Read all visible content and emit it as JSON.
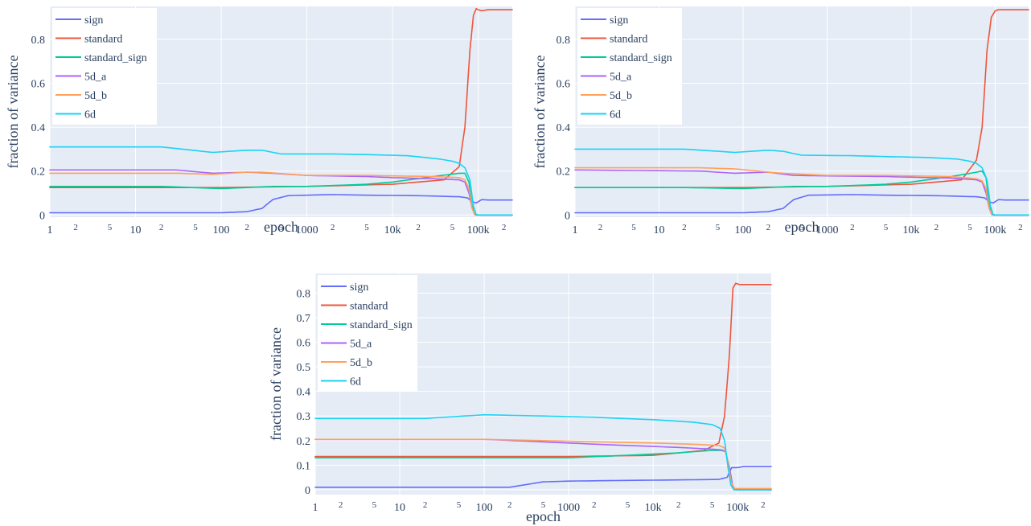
{
  "chart_data": [
    {
      "type": "line",
      "xlabel": "epoch",
      "ylabel": "fraction of variance",
      "x_scale": "log",
      "xlim": [
        1,
        250000
      ],
      "ylim": [
        -0.01,
        0.95
      ],
      "yticks": [
        0,
        0.2,
        0.4,
        0.6,
        0.8
      ],
      "ytick_labels": [
        "0",
        "0.2",
        "0.4",
        "0.6",
        "0.8"
      ],
      "xticks_major": [
        1,
        10,
        100,
        1000,
        10000,
        100000
      ],
      "xtick_labels_major": [
        "1",
        "10",
        "100",
        "1000",
        "10k",
        "100k"
      ],
      "xticks_minor": [
        2,
        5,
        20,
        50,
        200,
        500,
        2000,
        5000,
        20000,
        50000,
        200000
      ],
      "xtick_labels_minor": [
        "2",
        "5",
        "2",
        "5",
        "2",
        "5",
        "2",
        "5",
        "2",
        "5",
        "2"
      ],
      "grid": true,
      "legend_position": "top-left",
      "series": [
        {
          "name": "sign",
          "color": "#636efa",
          "x": [
            1,
            100,
            200,
            300,
            400,
            600,
            2000,
            5000,
            20000,
            60000,
            75000,
            85000,
            95000,
            110000,
            130000,
            250000
          ],
          "y": [
            0.01,
            0.01,
            0.015,
            0.03,
            0.07,
            0.088,
            0.093,
            0.09,
            0.088,
            0.083,
            0.078,
            0.06,
            0.055,
            0.07,
            0.068,
            0.068
          ]
        },
        {
          "name": "standard",
          "color": "#ef553b",
          "x": [
            1,
            100,
            1000,
            10000,
            40000,
            60000,
            70000,
            80000,
            88000,
            95000,
            100000,
            110000,
            130000,
            250000
          ],
          "y": [
            0.125,
            0.125,
            0.13,
            0.14,
            0.16,
            0.22,
            0.4,
            0.75,
            0.91,
            0.94,
            0.935,
            0.93,
            0.935,
            0.935
          ]
        },
        {
          "name": "standard_sign",
          "color": "#00cc96",
          "x": [
            1,
            20,
            100,
            200,
            400,
            1000,
            5000,
            10000,
            30000,
            60000,
            70000,
            78000,
            84000,
            90000,
            100000,
            250000
          ],
          "y": [
            0.13,
            0.13,
            0.12,
            0.125,
            0.13,
            0.13,
            0.14,
            0.15,
            0.175,
            0.19,
            0.19,
            0.15,
            0.05,
            0.005,
            0.0,
            0.0
          ]
        },
        {
          "name": "5d_a",
          "color": "#ab63fa",
          "x": [
            1,
            30,
            80,
            200,
            400,
            1000,
            5000,
            10000,
            30000,
            60000,
            70000,
            78000,
            85000,
            92000,
            100000,
            250000
          ],
          "y": [
            0.205,
            0.205,
            0.19,
            0.195,
            0.19,
            0.18,
            0.175,
            0.17,
            0.165,
            0.16,
            0.15,
            0.1,
            0.03,
            0.0,
            0.0,
            0.0
          ]
        },
        {
          "name": "5d_b",
          "color": "#ffa15a",
          "x": [
            1,
            30,
            80,
            200,
            300,
            1000,
            5000,
            10000,
            30000,
            60000,
            70000,
            78000,
            85000,
            92000,
            100000,
            250000
          ],
          "y": [
            0.19,
            0.19,
            0.185,
            0.195,
            0.195,
            0.18,
            0.18,
            0.178,
            0.175,
            0.17,
            0.16,
            0.12,
            0.03,
            0.0,
            0.0,
            0.0
          ]
        },
        {
          "name": "6d",
          "color": "#19d3f3",
          "x": [
            1,
            20,
            80,
            200,
            300,
            500,
            2000,
            5000,
            15000,
            35000,
            50000,
            60000,
            70000,
            80000,
            88000,
            95000,
            105000,
            250000
          ],
          "y": [
            0.31,
            0.31,
            0.285,
            0.295,
            0.295,
            0.278,
            0.278,
            0.275,
            0.27,
            0.255,
            0.245,
            0.235,
            0.215,
            0.16,
            0.04,
            0.0,
            0.0,
            0.0
          ]
        }
      ]
    },
    {
      "type": "line",
      "xlabel": "epoch",
      "ylabel": "fraction of variance",
      "x_scale": "log",
      "xlim": [
        1,
        250000
      ],
      "ylim": [
        -0.01,
        0.95
      ],
      "yticks": [
        0,
        0.2,
        0.4,
        0.6,
        0.8
      ],
      "ytick_labels": [
        "0",
        "0.2",
        "0.4",
        "0.6",
        "0.8"
      ],
      "xticks_major": [
        1,
        10,
        100,
        1000,
        10000,
        100000
      ],
      "xtick_labels_major": [
        "1",
        "10",
        "100",
        "1000",
        "10k",
        "100k"
      ],
      "xticks_minor": [
        2,
        5,
        20,
        50,
        200,
        500,
        2000,
        5000,
        20000,
        50000,
        200000
      ],
      "xtick_labels_minor": [
        "2",
        "5",
        "2",
        "5",
        "2",
        "5",
        "2",
        "5",
        "2",
        "5",
        "2"
      ],
      "grid": true,
      "legend_position": "top-left",
      "series": [
        {
          "name": "sign",
          "color": "#636efa",
          "x": [
            1,
            100,
            200,
            300,
            400,
            600,
            2000,
            5000,
            20000,
            60000,
            75000,
            85000,
            95000,
            110000,
            130000,
            250000
          ],
          "y": [
            0.01,
            0.01,
            0.015,
            0.03,
            0.07,
            0.09,
            0.093,
            0.09,
            0.088,
            0.083,
            0.078,
            0.06,
            0.055,
            0.07,
            0.068,
            0.068
          ]
        },
        {
          "name": "standard",
          "color": "#ef553b",
          "x": [
            1,
            100,
            1000,
            10000,
            40000,
            60000,
            70000,
            80000,
            90000,
            100000,
            110000,
            130000,
            250000
          ],
          "y": [
            0.125,
            0.125,
            0.13,
            0.14,
            0.16,
            0.25,
            0.4,
            0.75,
            0.9,
            0.93,
            0.935,
            0.935,
            0.935
          ]
        },
        {
          "name": "standard_sign",
          "color": "#00cc96",
          "x": [
            1,
            20,
            100,
            200,
            400,
            1000,
            5000,
            10000,
            30000,
            60000,
            70000,
            78000,
            84000,
            90000,
            100000,
            250000
          ],
          "y": [
            0.125,
            0.125,
            0.12,
            0.125,
            0.13,
            0.13,
            0.14,
            0.15,
            0.175,
            0.195,
            0.2,
            0.17,
            0.06,
            0.005,
            0.0,
            0.0
          ]
        },
        {
          "name": "5d_a",
          "color": "#ab63fa",
          "x": [
            1,
            30,
            80,
            200,
            400,
            1000,
            5000,
            10000,
            30000,
            60000,
            70000,
            78000,
            85000,
            92000,
            100000,
            250000
          ],
          "y": [
            0.205,
            0.2,
            0.19,
            0.195,
            0.18,
            0.178,
            0.175,
            0.172,
            0.168,
            0.16,
            0.15,
            0.1,
            0.03,
            0.0,
            0.0,
            0.0
          ]
        },
        {
          "name": "5d_b",
          "color": "#ffa15a",
          "x": [
            1,
            30,
            80,
            200,
            300,
            1000,
            5000,
            10000,
            30000,
            60000,
            70000,
            78000,
            85000,
            92000,
            100000,
            250000
          ],
          "y": [
            0.215,
            0.215,
            0.21,
            0.195,
            0.19,
            0.18,
            0.18,
            0.178,
            0.175,
            0.165,
            0.155,
            0.12,
            0.03,
            0.0,
            0.0,
            0.0
          ]
        },
        {
          "name": "6d",
          "color": "#19d3f3",
          "x": [
            1,
            20,
            80,
            200,
            300,
            500,
            2000,
            5000,
            15000,
            35000,
            50000,
            60000,
            70000,
            80000,
            88000,
            95000,
            105000,
            250000
          ],
          "y": [
            0.3,
            0.3,
            0.285,
            0.295,
            0.29,
            0.272,
            0.27,
            0.266,
            0.262,
            0.255,
            0.245,
            0.235,
            0.215,
            0.16,
            0.04,
            0.0,
            0.0,
            0.0
          ]
        }
      ]
    },
    {
      "type": "line",
      "xlabel": "epoch",
      "ylabel": "fraction of variance",
      "x_scale": "log",
      "xlim": [
        1,
        250000
      ],
      "ylim": [
        -0.02,
        0.88
      ],
      "yticks": [
        0,
        0.1,
        0.2,
        0.3,
        0.4,
        0.5,
        0.6,
        0.7,
        0.8
      ],
      "ytick_labels": [
        "0",
        "0.1",
        "0.2",
        "0.3",
        "0.4",
        "0.5",
        "0.6",
        "0.7",
        "0.8"
      ],
      "xticks_major": [
        1,
        10,
        100,
        1000,
        10000,
        100000
      ],
      "xtick_labels_major": [
        "1",
        "10",
        "100",
        "1000",
        "10k",
        "100k"
      ],
      "xticks_minor": [
        2,
        5,
        20,
        50,
        200,
        500,
        2000,
        5000,
        20000,
        50000,
        200000
      ],
      "xtick_labels_minor": [
        "2",
        "5",
        "2",
        "5",
        "2",
        "5",
        "2",
        "5",
        "2",
        "5",
        "2"
      ],
      "grid": true,
      "legend_position": "top-left",
      "series": [
        {
          "name": "sign",
          "color": "#636efa",
          "x": [
            1,
            200,
            300,
            500,
            1000,
            5000,
            20000,
            60000,
            75000,
            85000,
            92000,
            100000,
            120000,
            250000
          ],
          "y": [
            0.01,
            0.01,
            0.02,
            0.032,
            0.035,
            0.038,
            0.04,
            0.042,
            0.05,
            0.09,
            0.09,
            0.09,
            0.095,
            0.095
          ]
        },
        {
          "name": "standard",
          "color": "#ef553b",
          "x": [
            1,
            100,
            1000,
            10000,
            40000,
            60000,
            70000,
            80000,
            88000,
            95000,
            105000,
            130000,
            250000
          ],
          "y": [
            0.135,
            0.135,
            0.135,
            0.14,
            0.16,
            0.19,
            0.3,
            0.55,
            0.82,
            0.84,
            0.835,
            0.835,
            0.835
          ]
        },
        {
          "name": "standard_sign",
          "color": "#00cc96",
          "x": [
            1,
            100,
            1000,
            5000,
            20000,
            50000,
            65000,
            72000,
            80000,
            88000,
            95000,
            250000
          ],
          "y": [
            0.13,
            0.13,
            0.13,
            0.14,
            0.15,
            0.16,
            0.16,
            0.155,
            0.09,
            0.01,
            0.0,
            0.0
          ]
        },
        {
          "name": "5d_a",
          "color": "#ab63fa",
          "x": [
            1,
            100,
            1000,
            5000,
            20000,
            50000,
            65000,
            72000,
            80000,
            88000,
            95000,
            250000
          ],
          "y": [
            0.205,
            0.205,
            0.19,
            0.18,
            0.172,
            0.165,
            0.162,
            0.155,
            0.09,
            0.01,
            0.0,
            0.0
          ]
        },
        {
          "name": "5d_b",
          "color": "#ffa15a",
          "x": [
            1,
            100,
            500,
            2000,
            10000,
            30000,
            60000,
            70000,
            76000,
            84000,
            92000,
            250000
          ],
          "y": [
            0.205,
            0.205,
            0.2,
            0.195,
            0.19,
            0.185,
            0.18,
            0.17,
            0.12,
            0.03,
            0.005,
            0.005
          ]
        },
        {
          "name": "6d",
          "color": "#19d3f3",
          "x": [
            1,
            20,
            100,
            500,
            2000,
            10000,
            30000,
            50000,
            62000,
            70000,
            77000,
            83000,
            90000,
            250000
          ],
          "y": [
            0.29,
            0.29,
            0.305,
            0.3,
            0.295,
            0.285,
            0.275,
            0.265,
            0.25,
            0.2,
            0.09,
            0.02,
            0.0,
            0.0
          ]
        }
      ]
    }
  ]
}
